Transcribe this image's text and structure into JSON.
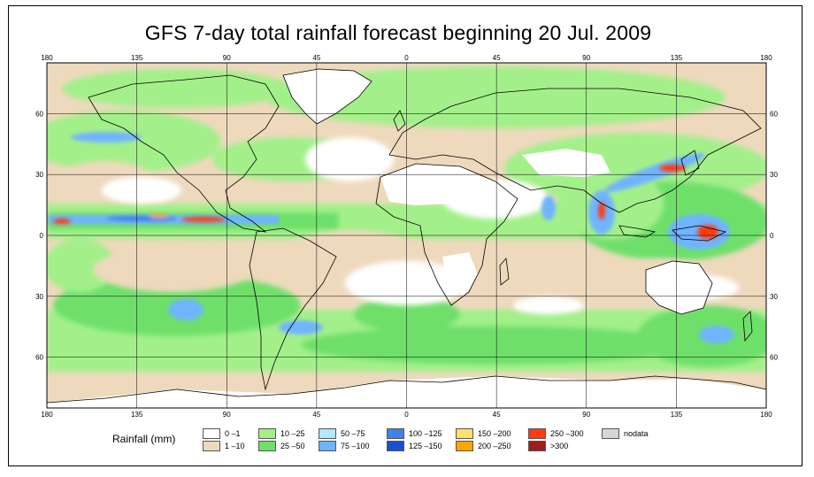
{
  "title": "GFS 7-day total rainfall forecast beginning 20 Jul. 2009",
  "axes": {
    "lon_ticks": [
      "180",
      "135",
      "90",
      "45",
      "0",
      "45",
      "90",
      "135",
      "180"
    ],
    "lat_ticks": [
      "60",
      "30",
      "0",
      "30",
      "60"
    ],
    "lon_values": [
      -180,
      -135,
      -90,
      -45,
      0,
      45,
      90,
      135,
      180
    ],
    "lat_values": [
      60,
      30,
      0,
      -30,
      -60
    ],
    "lon_range": [
      -180,
      180
    ],
    "lat_range": [
      -85,
      85
    ],
    "grid": true
  },
  "legend": {
    "title": "Rainfall (mm)",
    "items": [
      {
        "label": "0 –1",
        "color": "#ffffff"
      },
      {
        "label": "1 –10",
        "color": "#eed9bd"
      },
      {
        "label": "10 –25",
        "color": "#a3f08a"
      },
      {
        "label": "25 –50",
        "color": "#6ee06a"
      },
      {
        "label": "50 –75",
        "color": "#b6e6ff"
      },
      {
        "label": "75 –100",
        "color": "#6fb4ff"
      },
      {
        "label": "100 –125",
        "color": "#3e82ec"
      },
      {
        "label": "125 –150",
        "color": "#1a4fd0"
      },
      {
        "label": "150 –200",
        "color": "#ffe06a"
      },
      {
        "label": "200 –250",
        "color": "#ffa500"
      },
      {
        "label": "250 –300",
        "color": "#ff3a10"
      },
      {
        "label": ">300",
        "color": "#a01c1c"
      },
      {
        "label": "nodata",
        "color": "#d6d6d6"
      }
    ]
  },
  "colors": {
    "land_outline": "#000000",
    "grid": "#000000",
    "ocean_dry": "#eed9bd",
    "light_rain": "#a3f08a",
    "mod_rain": "#6ee06a",
    "heavy_blue": "#3e82ec",
    "extreme": "#ff3a10"
  }
}
